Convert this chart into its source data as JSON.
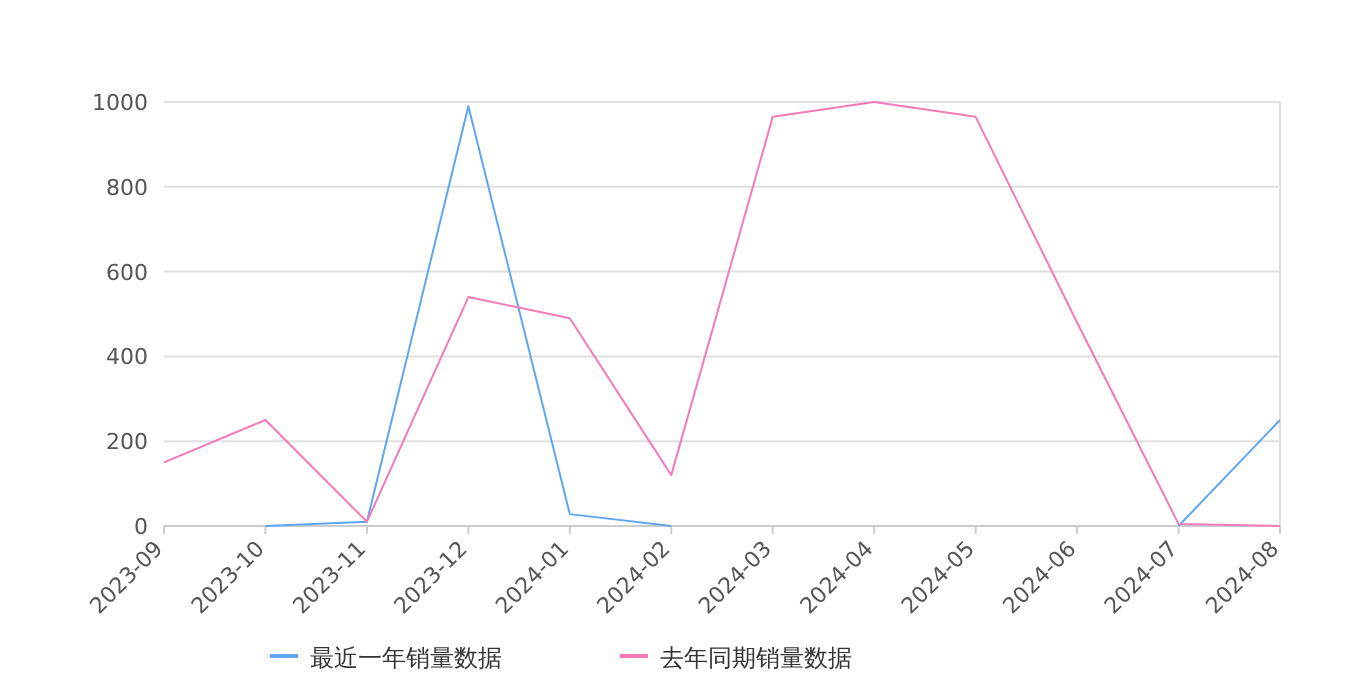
{
  "chart_data": {
    "type": "line",
    "categories": [
      "2023-09",
      "2023-10",
      "2023-11",
      "2023-12",
      "2024-01",
      "2024-02",
      "2024-03",
      "2024-04",
      "2024-05",
      "2024-06",
      "2024-07",
      "2024-08"
    ],
    "series": [
      {
        "name": "最近一年销量数据",
        "color": "#5ea6f2",
        "values": [
          null,
          0,
          10,
          990,
          28,
          0,
          null,
          null,
          null,
          null,
          0,
          250
        ]
      },
      {
        "name": "去年同期销量数据",
        "color": "#f27bb8",
        "values": [
          150,
          250,
          10,
          540,
          490,
          120,
          965,
          1000,
          965,
          480,
          5,
          0
        ]
      }
    ],
    "ylim": [
      0,
      1000
    ],
    "yticks": [
      0,
      200,
      400,
      600,
      800,
      1000
    ],
    "grid": "y",
    "legend": "bottom",
    "marker": "none",
    "line_style": "solid"
  }
}
